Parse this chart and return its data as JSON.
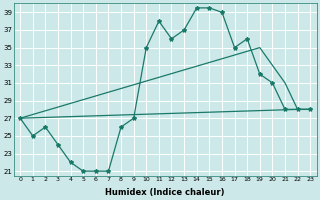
{
  "bg_color": "#cce8e8",
  "grid_color": "#ffffff",
  "line_color": "#1a7a6a",
  "xlabel": "Humidex (Indice chaleur)",
  "ylim": [
    20.5,
    40
  ],
  "yticks": [
    21,
    23,
    25,
    27,
    29,
    31,
    33,
    35,
    37,
    39
  ],
  "xticks": [
    0,
    1,
    2,
    3,
    4,
    5,
    6,
    7,
    8,
    9,
    10,
    11,
    12,
    13,
    14,
    15,
    16,
    17,
    18,
    19,
    20,
    21,
    22,
    23
  ],
  "xlim": [
    -0.5,
    23.5
  ],
  "curve1_x": [
    0,
    1,
    2,
    3,
    4,
    5,
    6,
    7,
    8,
    9,
    10,
    11,
    12,
    13,
    14,
    15,
    16,
    17,
    18,
    19,
    20,
    21,
    22,
    23
  ],
  "curve1_y": [
    27,
    25,
    26,
    24,
    22,
    21,
    21,
    21,
    26,
    27,
    35,
    38,
    36,
    37,
    39.5,
    39.5,
    39,
    35,
    36,
    32,
    31,
    28,
    28,
    28
  ],
  "curve2_x": [
    0,
    22,
    23
  ],
  "curve2_y": [
    27,
    28,
    28
  ],
  "curve3_x": [
    0,
    19,
    21,
    22,
    23
  ],
  "curve3_y": [
    27,
    35,
    31,
    28,
    28
  ]
}
